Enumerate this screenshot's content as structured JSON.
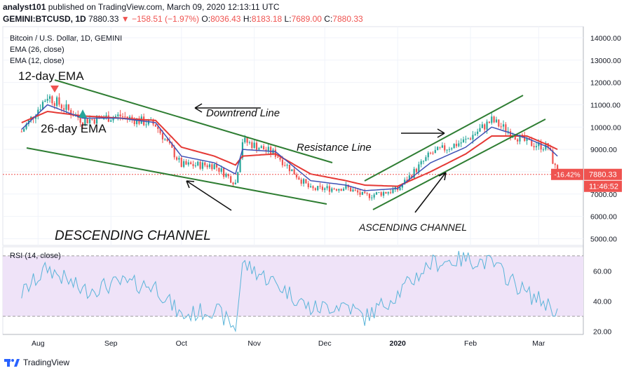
{
  "header": {
    "author": "analyst101",
    "published": "published on TradingView.com, March 09, 2020 12:13:11 UTC",
    "symbol": "GEMINI:BTCUSD, 1D",
    "last": "7880.33",
    "arrow": "▼",
    "change": "−158.51 (−1.97%)",
    "o_label": "O:",
    "o": "8036.43",
    "h_label": "H:",
    "h": "8183.18",
    "l_label": "L:",
    "l": "7689.00",
    "c_label": "C:",
    "c": "7880.33"
  },
  "legend": {
    "title": "Bitcoin / U.S. Dollar, 1D, GEMINI",
    "ema26": "EMA (26, close)",
    "ema12": "EMA (12, close)"
  },
  "annotations": {
    "ema12": "12-day EMA",
    "ema26": "26-day EMA",
    "downtrend": "Downtrend Line",
    "resistance": "Resistance Line",
    "descending": "DESCENDING CHANNEL",
    "ascending": "ASCENDING CHANNEL"
  },
  "price_axis": {
    "ticks": [
      "14000.00",
      "13000.00",
      "12000.00",
      "11000.00",
      "10000.00",
      "9000.00",
      "8000.00",
      "7000.00",
      "6000.00",
      "5000.00"
    ],
    "last_label": "7880.33",
    "pct_label": "-16.42%",
    "countdown": "11:46:52"
  },
  "rsi": {
    "title": "RSI (14, close)",
    "ticks": [
      "60.00",
      "40.00",
      "20.00"
    ]
  },
  "time_axis": [
    "Aug",
    "Sep",
    "Oct",
    "Nov",
    "Dec",
    "2020",
    "Feb",
    "Mar"
  ],
  "footer": {
    "brand": "TradingView"
  },
  "colors": {
    "up": "#26a69a",
    "down": "#ef5350",
    "ema12": "#3f51b5",
    "ema26": "#e53935",
    "trend": "#2e7d32",
    "rsi": "#5ab4d9",
    "rsi_band": "#efe3f8"
  },
  "chart_data": {
    "type": "candlestick",
    "x": [
      "2019-07-25",
      "2019-08-05",
      "2019-08-20",
      "2019-09-05",
      "2019-09-20",
      "2019-10-01",
      "2019-10-15",
      "2019-10-24",
      "2019-10-27",
      "2019-11-10",
      "2019-11-25",
      "2019-12-10",
      "2019-12-18",
      "2020-01-01",
      "2020-01-15",
      "2020-01-30",
      "2020-02-10",
      "2020-02-25",
      "2020-03-05",
      "2020-03-09"
    ],
    "close": [
      9800,
      11400,
      10300,
      10500,
      10100,
      8300,
      8300,
      7500,
      9400,
      8800,
      7200,
      7300,
      6900,
      7200,
      8800,
      9400,
      10300,
      9300,
      9100,
      7880
    ],
    "ema12": [
      9900,
      11000,
      10400,
      10400,
      10200,
      8700,
      8400,
      7900,
      9000,
      8900,
      7600,
      7400,
      7150,
      7250,
      8400,
      9100,
      10000,
      9500,
      9100,
      8700
    ],
    "ema26": [
      10200,
      10700,
      10500,
      10400,
      10300,
      9100,
      8700,
      8300,
      8700,
      8800,
      7900,
      7600,
      7400,
      7350,
      8000,
      8800,
      9600,
      9600,
      9200,
      9000
    ],
    "rsi": [
      45,
      62,
      47,
      52,
      50,
      30,
      35,
      22,
      65,
      52,
      35,
      38,
      29,
      45,
      65,
      68,
      65,
      45,
      38,
      33
    ],
    "ylim": [
      4700,
      14500
    ],
    "rsi_ylim": [
      18,
      76
    ],
    "rsi_band": [
      30,
      70
    ]
  }
}
